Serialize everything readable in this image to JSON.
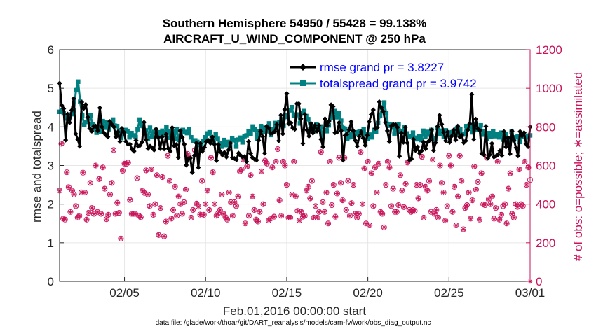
{
  "chart_data": {
    "type": "line",
    "title": "Southern Hemisphere 54950 / 55428 = 99.138%",
    "subtitle": "AIRCRAFT_U_WIND_COMPONENT @ 250 hPa",
    "xlabel": "Feb.01,2016 00:00:00 start",
    "ylabel": "rmse and totalspread",
    "y2label": "# of obs: o=possible; ∗=assimilated",
    "footer": "data file: /glade/work/thoar/git/DART_reanalysis/models/cam-fv/work/obs_diag_output.nc",
    "xlim": [
      1,
      30
    ],
    "x_ticks": [
      {
        "value": 5,
        "label": "02/05"
      },
      {
        "value": 10,
        "label": "02/10"
      },
      {
        "value": 15,
        "label": "02/15"
      },
      {
        "value": 20,
        "label": "02/20"
      },
      {
        "value": 25,
        "label": "02/25"
      },
      {
        "value": 30,
        "label": "03/01"
      }
    ],
    "ylim": [
      0,
      6
    ],
    "y_ticks": [
      0,
      1,
      2,
      3,
      4,
      5,
      6
    ],
    "y2lim": [
      0,
      1200
    ],
    "y2_ticks": [
      0,
      200,
      400,
      600,
      800,
      1000,
      1200
    ],
    "legend_position": "top-right",
    "series": [
      {
        "name": "rmse grand pr = 3.8227",
        "color": "#000000",
        "marker": "diamond",
        "values": [
          5.13,
          4.56,
          4.47,
          3.66,
          4.33,
          4.11,
          4.43,
          4.73,
          3.82,
          3.68,
          3.5,
          4.64,
          4.48,
          4.58,
          4.25,
          3.96,
          3.89,
          4.01,
          4.02,
          3.9,
          4.49,
          4.0,
          3.85,
          3.79,
          3.74,
          4.14,
          4.06,
          4.0,
          3.74,
          3.87,
          3.62,
          3.96,
          3.86,
          3.62,
          3.55,
          3.55,
          3.42,
          3.37,
          3.65,
          3.5,
          3.52,
          3.6,
          4.12,
          3.67,
          3.44,
          3.5,
          3.46,
          3.4,
          3.94,
          3.73,
          3.44,
          3.74,
          3.43,
          3.81,
          3.44,
          3.37,
          3.98,
          3.51,
          3.54,
          3.21,
          3.9,
          3.73,
          3.55,
          3.01,
          3.17,
          3.19,
          2.82,
          3.26,
          3.58,
          2.95,
          3.57,
          3.37,
          3.47,
          3.62,
          3.65,
          3.58,
          3.74,
          3.55,
          3.13,
          3.54,
          3.35,
          3.27,
          3.34,
          3.22,
          3.4,
          3.58,
          3.2,
          3.18,
          3.15,
          3.32,
          3.26,
          3.22,
          3.23,
          3.1,
          3.62,
          3.31,
          3.2,
          3.16,
          3.14,
          3.65,
          3.89,
          3.75,
          3.32,
          4.01,
          3.97,
          3.83,
          3.84,
          3.88,
          4.06,
          3.64,
          4.3,
          3.82,
          4.45,
          4.86,
          4.08,
          4.1,
          3.97,
          3.94,
          4.6,
          4.6,
          4.21,
          3.57,
          4.32,
          3.92,
          3.76,
          4.09,
          3.84,
          4.04,
          3.89,
          4.04,
          3.68,
          3.48,
          4.21,
          4.03,
          4.15,
          4.57,
          4.53,
          3.85,
          3.86,
          4.11,
          3.9,
          3.14,
          3.78,
          3.81,
          3.93,
          4.13,
          3.9,
          3.65,
          3.5,
          3.75,
          3.87,
          3.71,
          3.52,
          3.78,
          4.13,
          4.32,
          4.44,
          3.96,
          3.98,
          4.65,
          4.5,
          4.4,
          4.12,
          3.9,
          3.62,
          4.03,
          4.06,
          4.06,
          3.99,
          3.24,
          3.84,
          3.6,
          3.99,
          3.58,
          3.14,
          3.17,
          3.68,
          3.39,
          3.48,
          3.32,
          3.38,
          3.61,
          3.43,
          3.6,
          3.65,
          3.92,
          3.39,
          3.59,
          4.01,
          4.3,
          4.07,
          3.86,
          3.64,
          3.87,
          3.6,
          3.76,
          3.92,
          3.66,
          4.02,
          3.74,
          3.79,
          3.59,
          3.64,
          3.92,
          4.08,
          4.84,
          3.68,
          4.2,
          3.95,
          3.91,
          3.31,
          3.28,
          4.01,
          3.19,
          3.28,
          3.57,
          3.22,
          3.24,
          3.28,
          3.38,
          3.26,
          3.88,
          3.48,
          3.72,
          3.3,
          3.89,
          3.65,
          3.46,
          3.25,
          3.88,
          3.77,
          3.85,
          3.56,
          3.49,
          4.0
        ]
      },
      {
        "name": "totalspread grand pr = 3.9742",
        "color": "#008080",
        "marker": "square",
        "values": [
          4.39,
          4.42,
          4.35,
          4.22,
          4.27,
          4.25,
          4.33,
          4.43,
          4.95,
          5.17,
          4.65,
          4.3,
          4.05,
          4.13,
          4.22,
          4.3,
          4.07,
          3.96,
          3.85,
          3.99,
          3.87,
          4.15,
          3.98,
          4.12,
          3.94,
          4.08,
          4.19,
          4.03,
          4.02,
          3.9,
          3.71,
          3.83,
          3.92,
          3.89,
          3.73,
          3.84,
          3.78,
          3.74,
          3.94,
          4.19,
          4.03,
          3.85,
          3.91,
          3.7,
          3.98,
          3.75,
          3.87,
          3.92,
          3.86,
          3.75,
          3.9,
          3.79,
          3.99,
          3.88,
          3.72,
          3.88,
          3.69,
          3.94,
          3.66,
          3.74,
          3.92,
          3.87,
          3.84,
          3.94,
          3.73,
          3.64,
          3.65,
          3.61,
          3.53,
          3.55,
          3.63,
          3.73,
          3.83,
          3.86,
          3.71,
          3.59,
          3.82,
          3.69,
          3.58,
          3.49,
          3.66,
          3.53,
          3.61,
          3.52,
          3.7,
          3.66,
          3.49,
          3.67,
          3.72,
          3.6,
          3.76,
          3.78,
          3.89,
          3.82,
          4.01,
          3.93,
          3.69,
          3.88,
          4.02,
          3.88,
          3.98,
          3.89,
          4.09,
          3.79,
          3.94,
          4.1,
          4.07,
          4.12,
          4.2,
          4.03,
          4.31,
          4.26,
          4.43,
          4.51,
          4.29,
          4.32,
          4.32,
          4.09,
          4.35,
          4.41,
          4.28,
          4.2,
          3.93,
          4.01,
          3.9,
          4.07,
          3.98,
          4.01,
          3.73,
          3.92,
          3.89,
          4.04,
          4.23,
          4.38,
          4.41,
          4.25,
          4.36,
          4.16,
          3.97,
          3.95,
          3.7,
          3.73,
          3.81,
          3.75,
          3.86,
          3.81,
          3.89,
          3.84,
          3.93,
          3.82,
          3.69,
          3.8,
          3.73,
          3.92,
          3.88,
          4.1,
          4.3,
          4.5,
          4.63,
          4.35,
          4.03,
          4.07,
          4.0,
          3.83,
          3.96,
          4.07,
          3.87,
          3.89,
          4.0,
          3.83,
          3.74,
          3.76,
          3.85,
          3.72,
          3.68,
          3.76,
          3.66,
          3.9,
          3.74,
          3.87,
          3.8,
          3.92,
          3.71,
          3.7,
          3.97,
          3.81,
          3.9,
          3.75,
          3.91,
          3.85,
          3.74,
          3.86,
          3.81,
          3.95,
          3.83,
          3.94,
          3.8,
          3.81,
          4.02,
          3.97,
          4.05,
          3.86,
          4.06,
          3.94,
          3.92,
          4.04,
          3.8,
          3.89,
          3.7,
          3.84,
          3.75,
          3.89,
          3.76,
          3.81,
          3.73,
          3.85,
          3.67,
          3.81,
          3.7,
          3.57,
          3.87,
          3.66,
          3.73,
          3.76,
          3.61,
          3.8,
          3.74,
          3.73,
          3.77,
          3.78
        ]
      },
      {
        "name": "obs possible",
        "color": "#c8145a",
        "marker": "circle",
        "values": [
          470,
          713,
          325,
          320,
          565,
          488,
          360,
          470,
          450,
          390,
          331,
          340,
          461,
          563,
          460,
          320,
          355,
          510,
          380,
          350,
          600,
          360,
          530,
          350,
          590,
          480,
          322,
          345,
          450,
          510,
          680,
          350,
          407,
          355,
          222,
          573,
          610,
          608,
          615,
          422,
          350,
          350,
          350,
          535,
          340,
          332,
          470,
          458,
          575,
          450,
          390,
          580,
          345,
          400,
          550,
          240,
          380,
          540,
          233,
          310,
          650,
          520,
          325,
          370,
          490,
          340,
          440,
          400,
          350,
          410,
          475,
          660,
          640,
          330,
          370,
          680,
          403,
          387,
          346,
          520,
          345,
          400,
          470,
          370,
          640,
          565,
          400,
          340,
          353,
          370,
          450,
          350,
          333,
          320,
          460,
          410,
          340,
          410,
          390,
          440,
          570,
          580,
          630,
          300,
          595,
          340,
          550,
          440,
          370,
          320,
          310,
          360,
          570,
          400,
          625,
          610,
          315,
          325,
          590,
          335,
          620,
          685,
          420,
          340,
          620,
          600,
          500,
          330,
          330,
          450,
          620,
          440,
          365,
          315,
          360,
          335,
          340,
          470,
          490,
          430,
          520,
          330,
          390,
          330,
          360,
          670,
          410,
          360,
          460,
          300,
          620,
          395,
          500,
          335,
          455,
          640,
          510,
          420,
          640,
          370,
          520,
          340,
          405,
          500,
          350,
          330,
          350,
          670,
          400,
          585,
          300,
          620,
          290,
          560,
          390,
          590,
          460,
          610,
          360,
          350,
          280,
          500,
          620,
          590,
          390,
          480,
          360,
          360,
          395,
          550,
          470,
          385,
          505,
          615,
          370,
          360,
          370,
          365,
          500,
          430,
          500,
          645,
          330,
          490,
          470,
          520,
          360,
          630,
          350,
          370,
          330,
          600,
          510,
          460,
          315,
          390,
          650,
          600,
          360,
          490,
          290,
          440,
          650,
          520,
          270,
          380,
          395,
          460,
          325,
          420,
          595,
          475,
          515,
          320,
          560,
          399,
          395,
          640,
          425,
          400,
          440,
          325,
          380,
          620,
          320,
          345,
          390,
          400,
          300,
          480,
          560,
          350,
          330,
          400,
          386,
          580,
          400,
          390,
          620,
          500,
          590,
          525
        ]
      },
      {
        "name": "obs assimilated",
        "color": "#c8145a",
        "marker": "asterisk",
        "values": [
          470,
          713,
          325,
          320,
          565,
          488,
          360,
          470,
          450,
          390,
          331,
          340,
          461,
          563,
          460,
          320,
          355,
          510,
          380,
          350,
          600,
          360,
          530,
          350,
          590,
          480,
          322,
          345,
          450,
          510,
          680,
          350,
          407,
          355,
          222,
          573,
          610,
          608,
          615,
          422,
          350,
          350,
          350,
          535,
          340,
          332,
          470,
          458,
          575,
          450,
          390,
          580,
          345,
          400,
          550,
          240,
          380,
          540,
          233,
          310,
          650,
          520,
          325,
          370,
          490,
          340,
          440,
          400,
          350,
          410,
          475,
          660,
          640,
          330,
          370,
          680,
          403,
          387,
          346,
          520,
          345,
          400,
          470,
          370,
          640,
          565,
          400,
          340,
          353,
          370,
          450,
          350,
          333,
          320,
          460,
          410,
          340,
          410,
          390,
          440,
          570,
          580,
          630,
          300,
          595,
          340,
          550,
          440,
          370,
          320,
          310,
          360,
          570,
          400,
          625,
          610,
          315,
          325,
          590,
          335,
          620,
          685,
          420,
          340,
          620,
          600,
          500,
          330,
          330,
          450,
          620,
          440,
          365,
          315,
          360,
          335,
          340,
          470,
          490,
          430,
          520,
          330,
          390,
          330,
          360,
          670,
          410,
          360,
          460,
          300,
          620,
          395,
          500,
          335,
          455,
          640,
          510,
          420,
          640,
          370,
          520,
          340,
          405,
          500,
          350,
          330,
          350,
          670,
          400,
          585,
          300,
          620,
          290,
          560,
          390,
          590,
          460,
          610,
          360,
          350,
          280,
          500,
          620,
          590,
          390,
          480,
          360,
          360,
          395,
          550,
          470,
          385,
          505,
          615,
          370,
          360,
          370,
          365,
          500,
          430,
          500,
          645,
          330,
          490,
          470,
          520,
          360,
          630,
          350,
          370,
          330,
          600,
          510,
          460,
          315,
          390,
          650,
          600,
          360,
          490,
          290,
          440,
          650,
          520,
          270,
          380,
          395,
          460,
          325,
          420,
          595,
          475,
          515,
          320,
          560,
          399,
          395,
          640,
          425,
          400,
          440,
          325,
          380,
          620,
          320,
          345,
          390,
          400,
          300,
          480,
          560,
          350,
          330,
          400,
          386,
          580,
          400,
          390,
          620,
          500,
          590,
          0
        ]
      }
    ]
  }
}
